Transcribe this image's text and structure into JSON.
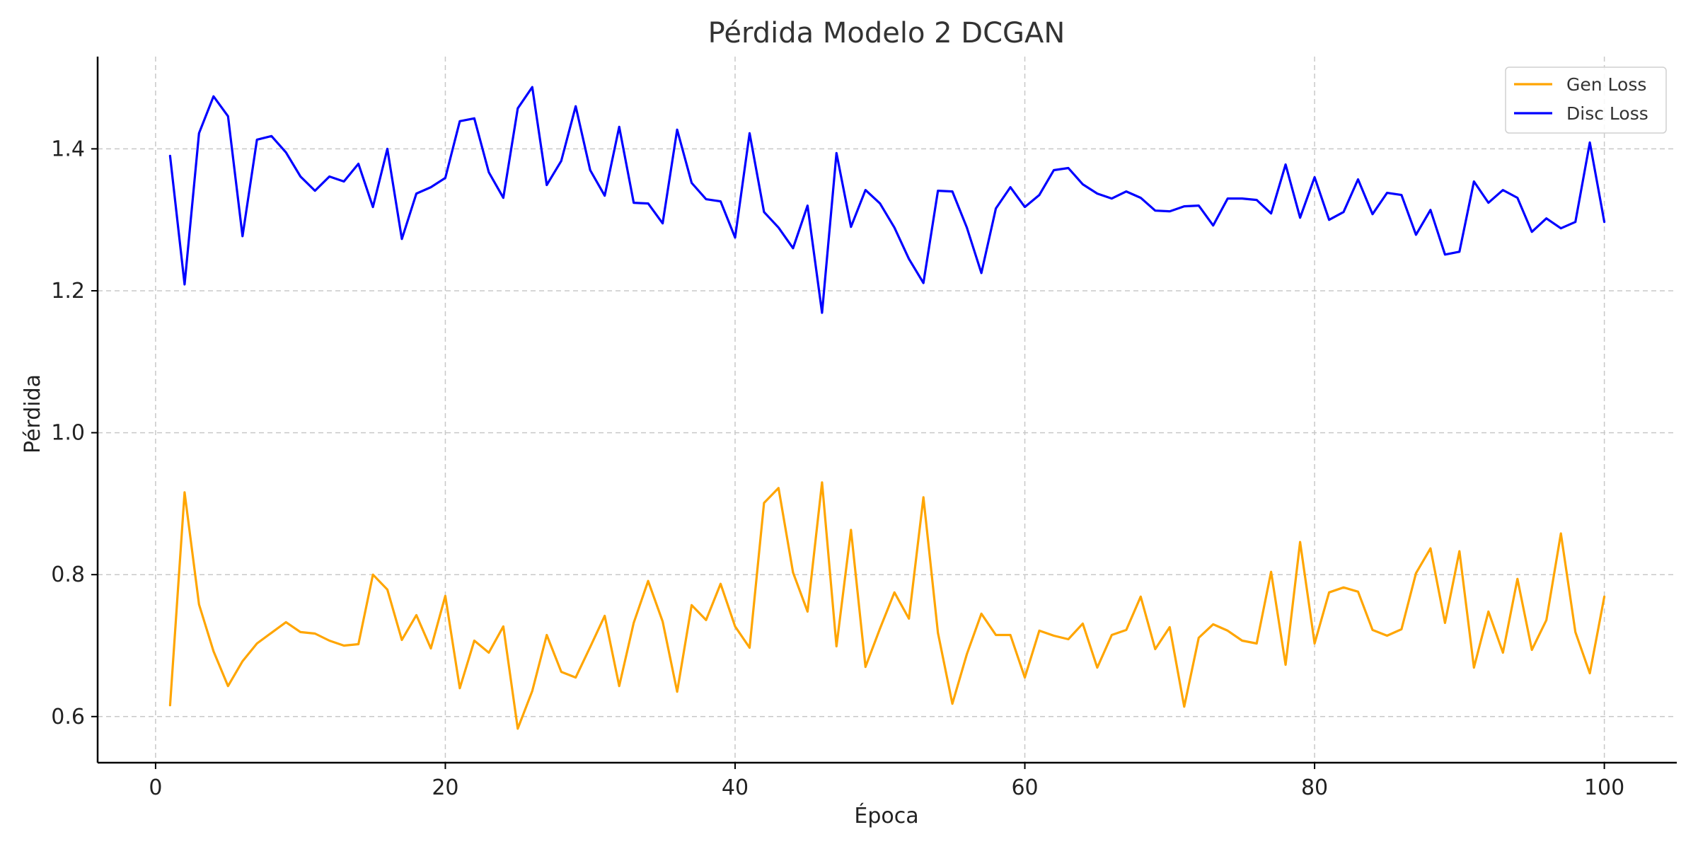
{
  "chart_data": {
    "type": "line",
    "title": "Pérdida Modelo 2 DCGAN",
    "xlabel": "Época",
    "ylabel": "Pérdida",
    "xlim": [
      -4,
      105
    ],
    "ylim": [
      0.535,
      1.53
    ],
    "xticks": [
      0,
      20,
      40,
      60,
      80,
      100
    ],
    "yticks": [
      0.6,
      0.8,
      1.0,
      1.2,
      1.4
    ],
    "grid": true,
    "legend_position": "top-right",
    "x": [
      1,
      2,
      3,
      4,
      5,
      6,
      7,
      8,
      9,
      10,
      11,
      12,
      13,
      14,
      15,
      16,
      17,
      18,
      19,
      20,
      21,
      22,
      23,
      24,
      25,
      26,
      27,
      28,
      29,
      30,
      31,
      32,
      33,
      34,
      35,
      36,
      37,
      38,
      39,
      40,
      41,
      42,
      43,
      44,
      45,
      46,
      47,
      48,
      49,
      50,
      51,
      52,
      53,
      54,
      55,
      56,
      57,
      58,
      59,
      60,
      61,
      62,
      63,
      64,
      65,
      66,
      67,
      68,
      69,
      70,
      71,
      72,
      73,
      74,
      75,
      76,
      77,
      78,
      79,
      80,
      81,
      82,
      83,
      84,
      85,
      86,
      87,
      88,
      89,
      90,
      91,
      92,
      93,
      94,
      95,
      96,
      97,
      98,
      99,
      100
    ],
    "series": [
      {
        "name": "Gen Loss",
        "color": "#FFA500",
        "values": [
          0.616,
          0.916,
          0.758,
          0.692,
          0.643,
          0.678,
          0.703,
          0.718,
          0.733,
          0.719,
          0.717,
          0.707,
          0.7,
          0.702,
          0.8,
          0.779,
          0.708,
          0.743,
          0.696,
          0.77,
          0.64,
          0.707,
          0.69,
          0.727,
          0.583,
          0.636,
          0.715,
          0.663,
          0.655,
          0.698,
          0.742,
          0.643,
          0.732,
          0.791,
          0.734,
          0.635,
          0.757,
          0.736,
          0.787,
          0.727,
          0.697,
          0.901,
          0.922,
          0.803,
          0.748,
          0.93,
          0.699,
          0.863,
          0.67,
          0.724,
          0.775,
          0.738,
          0.909,
          0.718,
          0.618,
          0.688,
          0.745,
          0.715,
          0.715,
          0.655,
          0.721,
          0.714,
          0.709,
          0.731,
          0.669,
          0.715,
          0.722,
          0.769,
          0.695,
          0.726,
          0.614,
          0.711,
          0.73,
          0.721,
          0.707,
          0.703,
          0.804,
          0.673,
          0.846,
          0.703,
          0.775,
          0.782,
          0.776,
          0.722,
          0.714,
          0.723,
          0.802,
          0.837,
          0.732,
          0.833,
          0.669,
          0.748,
          0.69,
          0.794,
          0.694,
          0.736,
          0.858,
          0.719,
          0.661,
          0.769
        ]
      },
      {
        "name": "Disc Loss",
        "color": "#0000FF",
        "values": [
          1.39,
          1.209,
          1.422,
          1.474,
          1.446,
          1.277,
          1.413,
          1.418,
          1.395,
          1.361,
          1.341,
          1.361,
          1.354,
          1.379,
          1.318,
          1.4,
          1.273,
          1.337,
          1.346,
          1.359,
          1.439,
          1.443,
          1.367,
          1.331,
          1.457,
          1.487,
          1.349,
          1.383,
          1.46,
          1.37,
          1.334,
          1.431,
          1.324,
          1.323,
          1.295,
          1.427,
          1.352,
          1.329,
          1.326,
          1.275,
          1.422,
          1.311,
          1.289,
          1.26,
          1.32,
          1.169,
          1.394,
          1.29,
          1.342,
          1.323,
          1.289,
          1.245,
          1.211,
          1.341,
          1.34,
          1.289,
          1.225,
          1.316,
          1.346,
          1.318,
          1.335,
          1.37,
          1.373,
          1.35,
          1.337,
          1.33,
          1.34,
          1.331,
          1.313,
          1.312,
          1.319,
          1.32,
          1.292,
          1.33,
          1.33,
          1.328,
          1.309,
          1.378,
          1.303,
          1.36,
          1.3,
          1.311,
          1.357,
          1.308,
          1.338,
          1.335,
          1.279,
          1.314,
          1.251,
          1.255,
          1.354,
          1.324,
          1.342,
          1.331,
          1.283,
          1.302,
          1.288,
          1.297,
          1.409,
          1.297
        ]
      }
    ]
  }
}
